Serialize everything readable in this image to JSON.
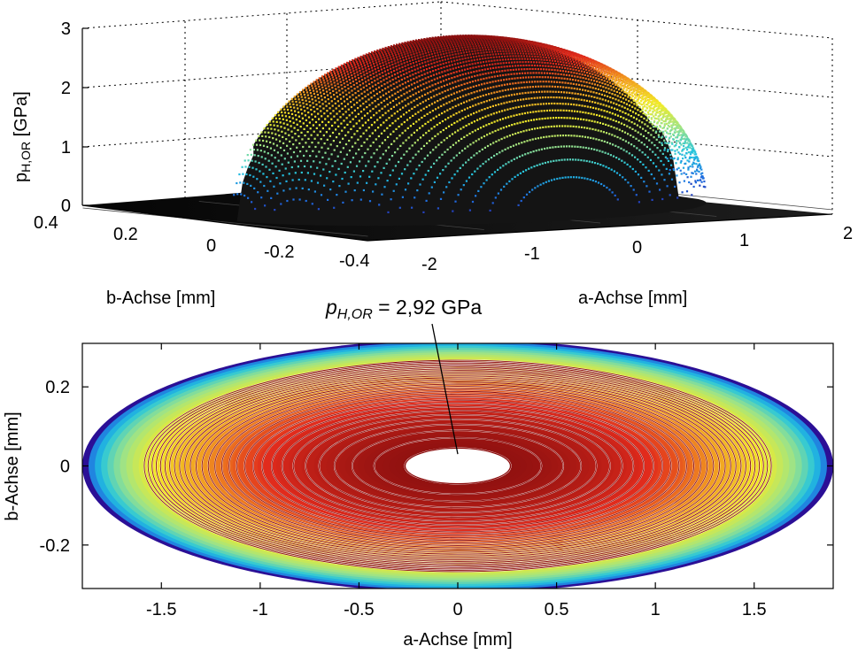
{
  "chart_data": [
    {
      "type": "surface3d",
      "panel": "top",
      "zlabel_main": "p",
      "zlabel_sub": "H,OR",
      "zlabel_unit": " [GPa]",
      "xlabel": "a-Achse [mm]",
      "ylabel": "b-Achse [mm]",
      "x_ticks": [
        "-2",
        "-1",
        "0",
        "1",
        "2"
      ],
      "y_ticks": [
        "0.4",
        "0.2",
        "0",
        "-0.2",
        "-0.4"
      ],
      "z_ticks": [
        "0",
        "1",
        "2",
        "3"
      ],
      "xlim": [
        -2,
        2
      ],
      "ylim": [
        -0.4,
        0.4
      ],
      "zlim": [
        0,
        3
      ],
      "grid": true,
      "semi_axis_a_mm": 1.9,
      "semi_axis_b_mm": 0.32,
      "peak_GPa": 2.92
    },
    {
      "type": "contour",
      "panel": "bottom",
      "xlabel": "a-Achse [mm]",
      "ylabel": "b-Achse [mm]",
      "x_ticks": [
        "-1.5",
        "-1",
        "-0.5",
        "0",
        "0.5",
        "1",
        "1.5"
      ],
      "y_ticks": [
        "0.2",
        "0",
        "-0.2"
      ],
      "xlim": [
        -1.9,
        1.9
      ],
      "ylim": [
        -0.31,
        0.31
      ],
      "semi_axis_a_mm": 1.9,
      "semi_axis_b_mm": 0.32,
      "peak_GPa": 2.92,
      "contour_levels": 30,
      "annotation": {
        "main": "p",
        "sub": "H,OR",
        "value": " = 2,92 GPa",
        "x": 0,
        "y": 0.03
      }
    }
  ],
  "colors": {
    "surface_dark": "#141414",
    "floor": "#0c0c0c",
    "colormap": [
      "#2b0f96",
      "#1f6ee0",
      "#22c4e0",
      "#9be38a",
      "#f2ec28",
      "#f2a020",
      "#e12a1c",
      "#8a0f0f"
    ],
    "contour_line": "#8b0c0c",
    "grid": "#000000"
  }
}
